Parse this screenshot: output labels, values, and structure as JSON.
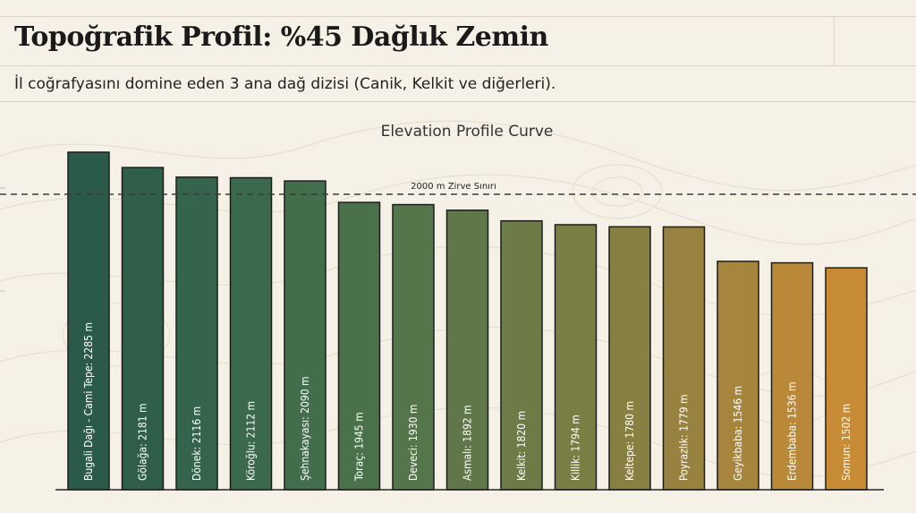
{
  "header": {
    "title": "Topoğrafik Profil: %45 Dağlık Zemin",
    "subtitle": "İl coğrafyasını domine eden 3 ana dağ dizisi (Canik, Kelkit ve diğerleri)."
  },
  "chart_data": {
    "type": "bar",
    "title": "Elevation Profile Curve",
    "xlabel": "",
    "ylabel": "",
    "ylim": [
      0,
      2600
    ],
    "grid": false,
    "reference_line": {
      "value": 2000,
      "label": "2000 m Zirve Sınırı"
    },
    "categories": [
      "Bugali Dağı - Cami Tepe",
      "Gölağa",
      "Dönek",
      "Köroğlu",
      "Şehnakayası",
      "Toraç",
      "Deveci",
      "Asmalı",
      "Kelkit",
      "Killik",
      "Keltepe",
      "Poyrazlık",
      "Geyikbaba",
      "Erdembaba",
      "Somun"
    ],
    "values": [
      2285,
      2181,
      2116,
      2112,
      2090,
      1945,
      1930,
      1892,
      1820,
      1794,
      1780,
      1779,
      1546,
      1536,
      1502
    ],
    "bar_labels": [
      "Bugali Dağı - Cami Tepe: 2285 m",
      "Gölağa: 2181 m",
      "Dönek: 2116 m",
      "Köroğlu: 2112 m",
      "Şehnakayası: 2090 m",
      "Toraç: 1945 m",
      "Deveci: 1930 m",
      "Asmalı: 1892 m",
      "Kelkit: 1820 m",
      "Killik: 1794 m",
      "Keltepe: 1780 m",
      "Poyrazlık: 1779 m",
      "Geyikbaba: 1546 m",
      "Erdembaba: 1536 m",
      "Somun: 1502 m"
    ],
    "colors": [
      "#2a5a4a",
      "#2f5f4b",
      "#35644c",
      "#3b694c",
      "#426e4c",
      "#4b714b",
      "#55754a",
      "#607849",
      "#6d7b47",
      "#7a7e45",
      "#888043",
      "#978240",
      "#a8853d",
      "#b98839",
      "#c98c36"
    ]
  }
}
